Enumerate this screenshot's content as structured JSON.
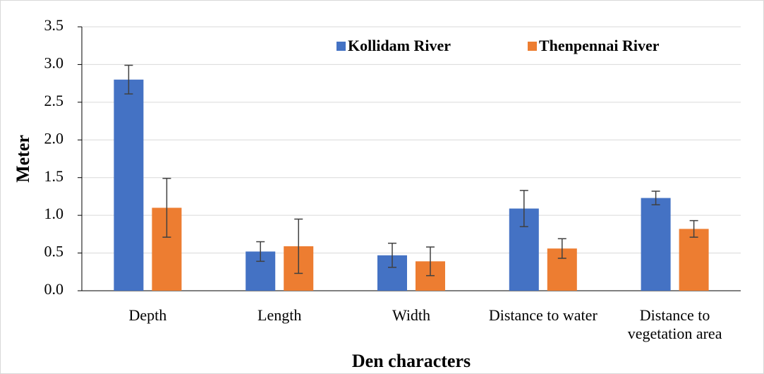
{
  "chart_data": {
    "type": "bar",
    "x_label": "Den characters",
    "y_label": "Meter",
    "categories": [
      "Depth",
      "Length",
      "Width",
      "Distance to water",
      "Distance to vegetation area"
    ],
    "series": [
      {
        "name": "Kollidam River",
        "color": "#4472c4",
        "values": [
          2.8,
          0.52,
          0.47,
          1.09,
          1.23
        ],
        "errors": [
          0.19,
          0.13,
          0.16,
          0.24,
          0.09
        ]
      },
      {
        "name": "Thenpennai River",
        "color": "#ed7d31",
        "values": [
          1.1,
          0.59,
          0.39,
          0.56,
          0.82
        ],
        "errors": [
          0.39,
          0.36,
          0.19,
          0.13,
          0.11
        ]
      }
    ],
    "ylim": [
      0,
      3.5
    ],
    "yticks": [
      {
        "value": 0,
        "label": "0.0"
      },
      0.5,
      {
        "value": 1,
        "label": "1.0"
      },
      1.5,
      {
        "value": 2,
        "label": "2.0"
      },
      2.5,
      {
        "value": 3,
        "label": "3.0"
      },
      3.5
    ],
    "grid": true,
    "legend": "top"
  }
}
